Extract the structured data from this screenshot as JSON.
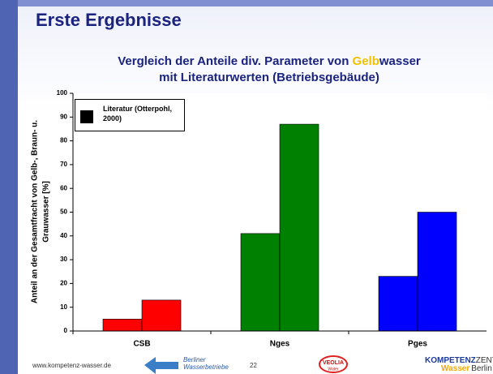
{
  "header": {
    "title": "Erste Ergebnisse"
  },
  "chart_data": {
    "type": "bar",
    "title": [
      "Vergleich der Anteile div. Parameter von ",
      "Gelb",
      "wasser"
    ],
    "title_line2": "mit Literaturwerten (Betriebsgebäude)",
    "y_label": [
      "Anteil an der Gesamtfracht von Gelb-, Braun- u.",
      "Grauwasser [%]"
    ],
    "categories": [
      "CSB",
      "Nges",
      "Pges"
    ],
    "category_colors": [
      "#ff0000",
      "#008000",
      "#0000ff"
    ],
    "series": [
      {
        "values": [
          5,
          41,
          23
        ]
      },
      {
        "name": "Literatur (Otterpohl, 2000)",
        "color": "#000000",
        "values": [
          13,
          87,
          50
        ]
      }
    ],
    "ylim": [
      0,
      100
    ],
    "yticks": [
      0,
      10,
      20,
      30,
      40,
      50,
      60,
      70,
      80,
      90,
      100
    ]
  },
  "footer": {
    "url": "www.kompetenz-wasser.de",
    "bwb": [
      "Berliner",
      "Wasserbetriebe"
    ],
    "page": "22",
    "veolia": [
      "VEOLIA",
      "Water"
    ],
    "kompetenz": [
      "KOMPETENZ",
      "ZENTRUM",
      "Wasser",
      "Berlin"
    ]
  }
}
